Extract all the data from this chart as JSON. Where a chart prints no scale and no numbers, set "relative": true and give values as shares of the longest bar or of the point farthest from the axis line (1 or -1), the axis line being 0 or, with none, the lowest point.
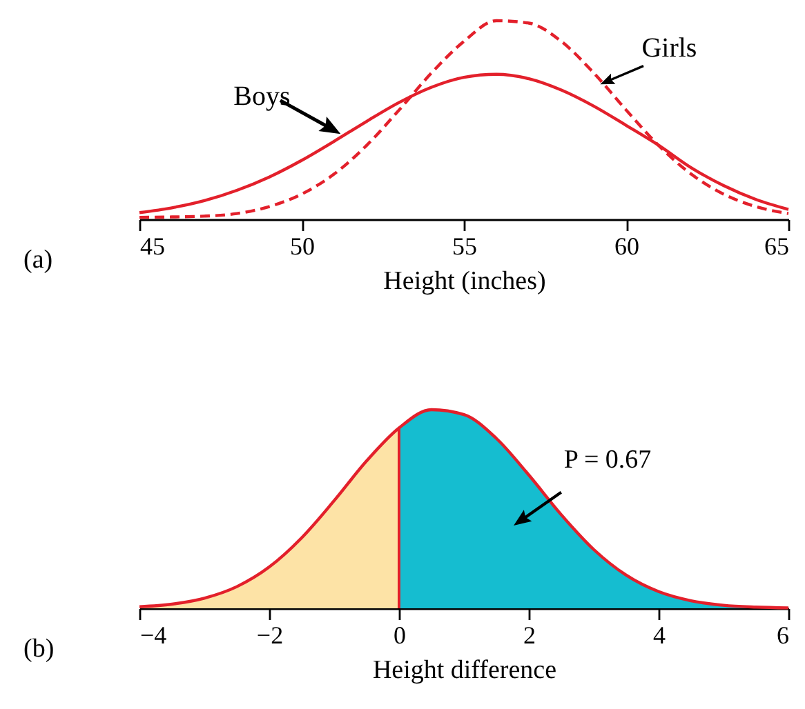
{
  "chart_data": [
    {
      "type": "line",
      "relative": true,
      "xlabel": "Height (inches)",
      "xlim": [
        45,
        65
      ],
      "xticks": [
        45,
        50,
        55,
        60,
        65
      ],
      "x": [
        45,
        46,
        47,
        48,
        49,
        50,
        51,
        52,
        53,
        54,
        55,
        56,
        57,
        58,
        59,
        60,
        61,
        62,
        63,
        64,
        65
      ],
      "series": [
        {
          "color": "#e3202b",
          "line_style": "solid",
          "values": [
            0.034,
            0.058,
            0.094,
            0.146,
            0.213,
            0.297,
            0.393,
            0.493,
            0.588,
            0.665,
            0.715,
            0.73,
            0.708,
            0.651,
            0.57,
            0.473,
            0.373,
            0.26,
            0.17,
            0.1,
            0.05
          ]
        },
        {
          "color": "#e3202b",
          "line_style": "dashed",
          "values": [
            0.01,
            0.012,
            0.016,
            0.029,
            0.064,
            0.127,
            0.228,
            0.372,
            0.55,
            0.737,
            0.896,
            1,
            0.988,
            0.896,
            0.737,
            0.55,
            0.372,
            0.228,
            0.127,
            0.064,
            0.029
          ]
        }
      ],
      "annotations": [
        {
          "text": "Boys",
          "x": 51.2,
          "y": 0.43
        },
        {
          "text": "Girls",
          "x": 59.2,
          "y": 0.68
        },
        "(a)"
      ]
    },
    {
      "type": "area",
      "relative": true,
      "xlabel": "Height difference",
      "xlim": [
        -4,
        6
      ],
      "xticks": [
        -4,
        -2,
        0,
        2,
        4,
        6
      ],
      "series": [
        {
          "type": "area",
          "color": "#fde3a6",
          "x": [
            -4,
            -3.5,
            -3,
            -2.5,
            -2,
            -1.5,
            -1,
            -0.5,
            0
          ],
          "values": [
            0.008,
            0.021,
            0.051,
            0.109,
            0.208,
            0.355,
            0.542,
            0.742,
            0.908
          ]
        },
        {
          "type": "area",
          "color": "#15bdd0",
          "x": [
            0,
            0.5,
            1,
            1.5,
            2,
            2.5,
            3,
            3.5,
            4,
            4.5,
            5,
            5.5,
            6
          ],
          "values": [
            0.908,
            1,
            0.975,
            0.855,
            0.671,
            0.471,
            0.296,
            0.167,
            0.084,
            0.038,
            0.015,
            0.006,
            0.002
          ]
        },
        {
          "type": "line",
          "color": "#e3202b",
          "x": [
            -4,
            -3.5,
            -3,
            -2.5,
            -2,
            -1.5,
            -1,
            -0.5,
            0,
            0.5,
            1,
            1.5,
            2,
            2.5,
            3,
            3.5,
            4,
            4.5,
            5,
            5.5,
            6
          ],
          "values": [
            0.008,
            0.021,
            0.051,
            0.109,
            0.208,
            0.355,
            0.542,
            0.742,
            0.908,
            1,
            0.975,
            0.855,
            0.671,
            0.471,
            0.296,
            0.167,
            0.084,
            0.038,
            0.015,
            0.006,
            0.002
          ]
        }
      ],
      "ref_lines": [
        {
          "axis": "x",
          "value": 0,
          "color": "#e3202b"
        }
      ],
      "annotations": [
        "P = 0.67",
        "(b)"
      ]
    }
  ]
}
